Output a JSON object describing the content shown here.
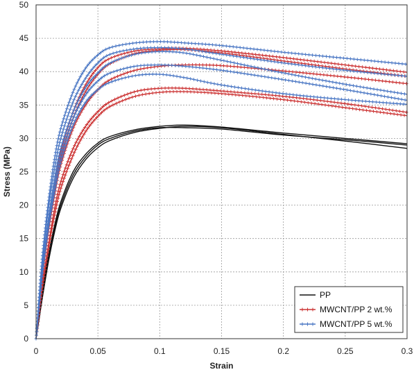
{
  "chart_data": {
    "type": "line",
    "title": "",
    "xlabel": "Strain",
    "ylabel": "Stress (MPa)",
    "xlim": [
      0,
      0.3
    ],
    "ylim": [
      0,
      50
    ],
    "x_ticks": [
      "0",
      "0.05",
      "0.1",
      "0.15",
      "0.2",
      "0.25",
      "0.3"
    ],
    "y_ticks": [
      "0",
      "5",
      "10",
      "15",
      "20",
      "25",
      "30",
      "35",
      "40",
      "45",
      "50"
    ],
    "grid": true,
    "legend_position": "bottom-right",
    "legend": [
      {
        "label": "PP",
        "color": "#111111",
        "marker": "none"
      },
      {
        "label": "MWCNT/PP 2 wt.%",
        "color": "#cc3333",
        "marker": "plus"
      },
      {
        "label": "MWCNT/PP 5 wt.%",
        "color": "#4a77c4",
        "marker": "plus"
      }
    ],
    "series": [
      {
        "group": 0,
        "x": [
          0,
          0.005,
          0.01,
          0.015,
          0.02,
          0.03,
          0.04,
          0.05,
          0.06,
          0.08,
          0.1,
          0.12,
          0.15,
          0.2,
          0.25,
          0.3
        ],
        "y": [
          0,
          6,
          11.5,
          16,
          19.5,
          24,
          26.8,
          28.6,
          29.7,
          30.9,
          31.5,
          31.8,
          31.6,
          30.6,
          29.6,
          28.5
        ]
      },
      {
        "group": 0,
        "x": [
          0,
          0.005,
          0.01,
          0.015,
          0.02,
          0.03,
          0.04,
          0.05,
          0.06,
          0.08,
          0.1,
          0.12,
          0.15,
          0.2,
          0.25,
          0.3
        ],
        "y": [
          0,
          7,
          12.5,
          17,
          20.5,
          25,
          27.6,
          29.3,
          30.3,
          31.3,
          31.8,
          32,
          31.7,
          30.8,
          30,
          29.2
        ]
      },
      {
        "group": 0,
        "x": [
          0,
          0.005,
          0.01,
          0.015,
          0.02,
          0.03,
          0.04,
          0.05,
          0.06,
          0.08,
          0.1,
          0.12,
          0.15,
          0.2,
          0.25,
          0.3
        ],
        "y": [
          0,
          6.5,
          12,
          16.5,
          20,
          24.5,
          27.2,
          29,
          30,
          31.1,
          31.6,
          31.6,
          31.4,
          30.5,
          29.8,
          29
        ]
      },
      {
        "group": 1,
        "x": [
          0,
          0.005,
          0.01,
          0.015,
          0.02,
          0.03,
          0.04,
          0.05,
          0.06,
          0.08,
          0.1,
          0.12,
          0.15,
          0.2,
          0.25,
          0.3
        ],
        "y": [
          0,
          7.5,
          13.5,
          18.5,
          22.5,
          27.5,
          31,
          33.3,
          34.8,
          36.3,
          36.9,
          37,
          36.7,
          35.8,
          34.6,
          33.4
        ]
      },
      {
        "group": 1,
        "x": [
          0,
          0.005,
          0.01,
          0.015,
          0.02,
          0.03,
          0.04,
          0.05,
          0.06,
          0.08,
          0.1,
          0.12,
          0.15,
          0.2,
          0.25,
          0.3
        ],
        "y": [
          0,
          8,
          14,
          19.5,
          23.5,
          28.5,
          31.8,
          34,
          35.5,
          37,
          37.5,
          37.5,
          37.1,
          36.3,
          35.2,
          33.9
        ]
      },
      {
        "group": 1,
        "x": [
          0,
          0.005,
          0.01,
          0.015,
          0.02,
          0.03,
          0.04,
          0.05,
          0.06,
          0.08,
          0.1,
          0.12,
          0.15,
          0.2,
          0.25,
          0.3
        ],
        "y": [
          0,
          9,
          16,
          21.5,
          26,
          31.5,
          35,
          37.3,
          38.8,
          40.2,
          40.8,
          41,
          40.9,
          40.1,
          39.2,
          38.2
        ]
      },
      {
        "group": 1,
        "x": [
          0,
          0.005,
          0.01,
          0.015,
          0.02,
          0.03,
          0.04,
          0.05,
          0.06,
          0.08,
          0.1,
          0.12,
          0.15,
          0.2,
          0.25,
          0.3
        ],
        "y": [
          0,
          9.5,
          17,
          23,
          28,
          34,
          38,
          40.6,
          42,
          43.1,
          43.4,
          43.5,
          43.1,
          42.1,
          41,
          39.9
        ]
      },
      {
        "group": 1,
        "x": [
          0,
          0.005,
          0.01,
          0.015,
          0.02,
          0.03,
          0.04,
          0.05,
          0.06,
          0.08,
          0.1,
          0.12,
          0.15,
          0.2,
          0.25,
          0.3
        ],
        "y": [
          0,
          9,
          16.5,
          22.5,
          27,
          33,
          37,
          39.6,
          41.2,
          42.7,
          43.2,
          43.3,
          42.8,
          41.6,
          40.4,
          39.3
        ]
      },
      {
        "group": 2,
        "x": [
          0,
          0.005,
          0.01,
          0.015,
          0.02,
          0.03,
          0.04,
          0.05,
          0.06,
          0.08,
          0.1,
          0.12,
          0.15,
          0.2,
          0.25,
          0.3
        ],
        "y": [
          0,
          12,
          20.5,
          27,
          31.5,
          37,
          40.5,
          42.5,
          43.6,
          44.3,
          44.5,
          44.3,
          43.9,
          42.9,
          42,
          41.1
        ]
      },
      {
        "group": 2,
        "x": [
          0,
          0.005,
          0.01,
          0.015,
          0.02,
          0.03,
          0.04,
          0.05,
          0.06,
          0.08,
          0.1,
          0.12,
          0.15,
          0.2,
          0.25,
          0.3
        ],
        "y": [
          0,
          11.5,
          19.5,
          25.5,
          30,
          35.5,
          39,
          41.3,
          42.6,
          43.4,
          43.6,
          43.4,
          42.6,
          41.3,
          40.2,
          39.3
        ]
      },
      {
        "group": 2,
        "x": [
          0,
          0.005,
          0.01,
          0.015,
          0.02,
          0.03,
          0.04,
          0.05,
          0.06,
          0.08,
          0.1,
          0.12,
          0.15,
          0.2,
          0.25,
          0.3
        ],
        "y": [
          0,
          10.5,
          18,
          24,
          28.5,
          34,
          37.6,
          39.8,
          41.3,
          42.6,
          43,
          42.8,
          41.7,
          39.8,
          38.1,
          36.6
        ]
      },
      {
        "group": 2,
        "x": [
          0,
          0.005,
          0.01,
          0.015,
          0.02,
          0.03,
          0.04,
          0.05,
          0.06,
          0.08,
          0.1,
          0.12,
          0.15,
          0.2,
          0.25,
          0.3
        ],
        "y": [
          0,
          10,
          17,
          23,
          27.5,
          33,
          36.5,
          38.6,
          39.8,
          40.8,
          41,
          40.8,
          40.2,
          38.8,
          37.3,
          35.7
        ]
      },
      {
        "group": 2,
        "x": [
          0,
          0.005,
          0.01,
          0.015,
          0.02,
          0.03,
          0.04,
          0.05,
          0.06,
          0.08,
          0.1,
          0.12,
          0.15,
          0.2,
          0.25,
          0.3
        ],
        "y": [
          0,
          9.5,
          16.5,
          22,
          26.5,
          32,
          35.4,
          37.3,
          38.4,
          39.4,
          39.6,
          39.1,
          38,
          36.7,
          35.8,
          35.1
        ]
      }
    ]
  }
}
